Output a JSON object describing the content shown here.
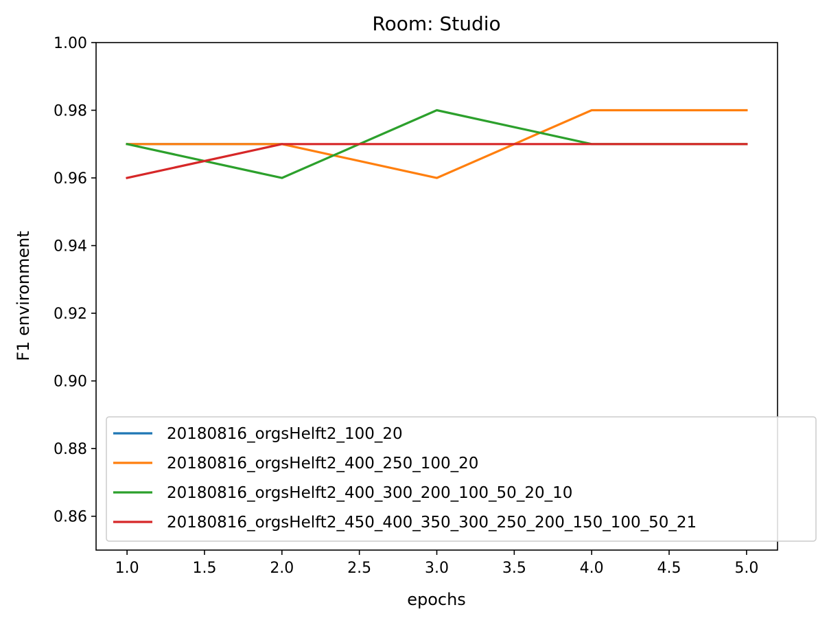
{
  "chart_data": {
    "type": "line",
    "title": "Room: Studio",
    "xlabel": "epochs",
    "ylabel": "F1 environment",
    "xlim": [
      0.8,
      5.2
    ],
    "ylim": [
      0.85,
      1.0
    ],
    "x_ticks": [
      "1.0",
      "1.5",
      "2.0",
      "2.5",
      "3.0",
      "3.5",
      "4.0",
      "4.5",
      "5.0"
    ],
    "y_ticks": [
      "0.86",
      "0.88",
      "0.90",
      "0.92",
      "0.94",
      "0.96",
      "0.98",
      "1.00"
    ],
    "x": [
      1,
      2,
      3,
      4,
      5
    ],
    "series": [
      {
        "name": "20180816_orgsHelft2_100_20",
        "color": "#1f77b4",
        "values": [
          0.97,
          0.97,
          null,
          null,
          null
        ]
      },
      {
        "name": "20180816_orgsHelft2_400_250_100_20",
        "color": "#ff7f0e",
        "values": [
          0.97,
          0.97,
          0.96,
          0.98,
          0.98
        ]
      },
      {
        "name": "20180816_orgsHelft2_400_300_200_100_50_20_10",
        "color": "#2ca02c",
        "values": [
          0.97,
          0.96,
          0.98,
          0.97,
          0.97
        ]
      },
      {
        "name": "20180816_orgsHelft2_450_400_350_300_250_200_150_100_50_21",
        "color": "#d62728",
        "values": [
          0.96,
          0.97,
          0.97,
          0.97,
          0.97
        ]
      }
    ],
    "legend_position": "lower-right",
    "grid": false
  }
}
